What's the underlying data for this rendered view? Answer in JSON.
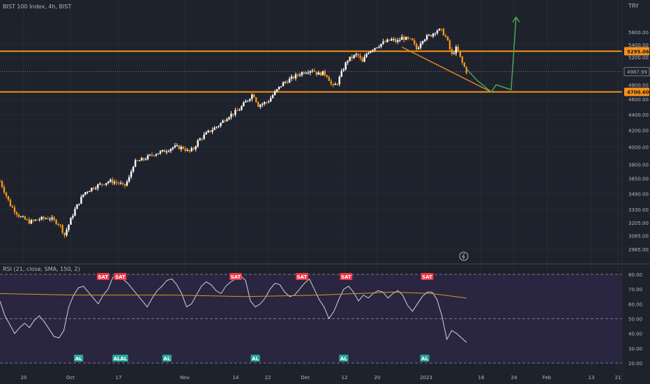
{
  "header": {
    "symbol_title": "BIST 100 Index, 4h, BIST",
    "currency": "TRY"
  },
  "rsi_header": {
    "label": "RSI (21, close, SMA, 150, 2)"
  },
  "colors": {
    "background": "#1e222d",
    "rsi_band": "#2a2540",
    "up": "#ffffff",
    "down": "#f7931a",
    "level": "#f7931a",
    "projection": "#4caf50",
    "rsi_line": "#d1d4dc",
    "rsi_ma": "#c9a227",
    "sat": "#f23645",
    "al": "#26a69a"
  },
  "chart_data": [
    {
      "type": "candlestick",
      "title": "BIST 100 Index, 4h, BIST",
      "x_tick_labels": [
        "20",
        "Oct",
        "17",
        "Nov",
        "14",
        "22",
        "Dec",
        "12",
        "20",
        "2023",
        "16",
        "24",
        "Feb",
        "13",
        "21"
      ],
      "y_tick_labels": [
        "5600.00",
        "5400.00",
        "5200.00",
        "4800.00",
        "4600.00",
        "4400.00",
        "4200.00",
        "4000.00",
        "3800.00",
        "3650.00",
        "3490.00",
        "3330.00",
        "3205.00",
        "3085.00",
        "2965.00"
      ],
      "ylim": [
        2900,
        5800
      ],
      "scale": "log",
      "price_labels": [
        {
          "value": "5295.06",
          "kind": "horizontal level"
        },
        {
          "value": "4987.99",
          "kind": "last price"
        },
        {
          "value": "4700.60",
          "kind": "horizontal level"
        }
      ],
      "horizontal_levels": [
        5295.06,
        4700.6
      ],
      "close_path": [
        [
          0,
          3620
        ],
        [
          2,
          3380
        ],
        [
          4,
          3260
        ],
        [
          6,
          3210
        ],
        [
          8,
          3240
        ],
        [
          10,
          3250
        ],
        [
          12,
          3190
        ],
        [
          13,
          3090
        ],
        [
          15,
          3320
        ],
        [
          17,
          3500
        ],
        [
          19,
          3560
        ],
        [
          21,
          3600
        ],
        [
          22,
          3620
        ],
        [
          24,
          3600
        ],
        [
          25,
          3560
        ],
        [
          26,
          3650
        ],
        [
          27,
          3820
        ],
        [
          29,
          3860
        ],
        [
          31,
          3920
        ],
        [
          33,
          3950
        ],
        [
          35,
          4000
        ],
        [
          37,
          3990
        ],
        [
          38,
          3940
        ],
        [
          39,
          3980
        ],
        [
          40,
          4080
        ],
        [
          42,
          4180
        ],
        [
          44,
          4260
        ],
        [
          46,
          4380
        ],
        [
          48,
          4450
        ],
        [
          50,
          4600
        ],
        [
          51,
          4680
        ],
        [
          52,
          4520
        ],
        [
          54,
          4570
        ],
        [
          55,
          4660
        ],
        [
          57,
          4820
        ],
        [
          59,
          4900
        ],
        [
          61,
          4980
        ],
        [
          63,
          5020
        ],
        [
          64,
          4950
        ],
        [
          65,
          4970
        ],
        [
          66,
          4930
        ],
        [
          67,
          4760
        ],
        [
          68,
          4830
        ],
        [
          69,
          5000
        ],
        [
          70,
          5160
        ],
        [
          72,
          5250
        ],
        [
          73,
          5120
        ],
        [
          74,
          5280
        ],
        [
          75,
          5330
        ],
        [
          77,
          5420
        ],
        [
          79,
          5480
        ],
        [
          80,
          5440
        ],
        [
          81,
          5510
        ],
        [
          83,
          5460
        ],
        [
          84,
          5320
        ],
        [
          85,
          5480
        ],
        [
          87,
          5560
        ],
        [
          88,
          5640
        ],
        [
          89,
          5620
        ],
        [
          90,
          5500
        ],
        [
          91,
          5230
        ],
        [
          92,
          5350
        ],
        [
          93,
          5140
        ],
        [
          94,
          4990
        ]
      ],
      "projection_path": [
        [
          94,
          5030
        ],
        [
          96,
          4870
        ],
        [
          99,
          4700
        ],
        [
          100,
          4800
        ],
        [
          103,
          4730
        ],
        [
          104,
          5850
        ]
      ],
      "trendline": [
        [
          81,
          5360
        ],
        [
          99,
          4700
        ]
      ]
    },
    {
      "type": "line",
      "title": "RSI (21, close, SMA, 150, 2)",
      "y_tick_labels": [
        "80.00",
        "70.00",
        "60.00",
        "50.00",
        "40.00",
        "30.00",
        "20.00"
      ],
      "ylim": [
        18,
        82
      ],
      "bands": [
        80,
        50,
        20
      ],
      "series": [
        {
          "values": [
            [
              0,
              62
            ],
            [
              1,
              52
            ],
            [
              2,
              46
            ],
            [
              3,
              40
            ],
            [
              4,
              44
            ],
            [
              5,
              47
            ],
            [
              6,
              44
            ],
            [
              7,
              49
            ],
            [
              8,
              52
            ],
            [
              9,
              48
            ],
            [
              10,
              43
            ],
            [
              11,
              38
            ],
            [
              12,
              37
            ],
            [
              13,
              42
            ],
            [
              14,
              58
            ],
            [
              15,
              66
            ],
            [
              16,
              71
            ],
            [
              17,
              72
            ],
            [
              18,
              68
            ],
            [
              19,
              64
            ],
            [
              20,
              60
            ],
            [
              21,
              66
            ],
            [
              22,
              70
            ],
            [
              23,
              78
            ],
            [
              24,
              79
            ],
            [
              25,
              77
            ],
            [
              26,
              74
            ],
            [
              27,
              70
            ],
            [
              28,
              66
            ],
            [
              29,
              62
            ],
            [
              30,
              58
            ],
            [
              31,
              64
            ],
            [
              32,
              69
            ],
            [
              33,
              72
            ],
            [
              34,
              76
            ],
            [
              35,
              77
            ],
            [
              36,
              73
            ],
            [
              37,
              67
            ],
            [
              38,
              58
            ],
            [
              39,
              60
            ],
            [
              40,
              66
            ],
            [
              41,
              72
            ],
            [
              42,
              75
            ],
            [
              43,
              73
            ],
            [
              44,
              69
            ],
            [
              45,
              67
            ],
            [
              46,
              72
            ],
            [
              47,
              75
            ],
            [
              48,
              77
            ],
            [
              49,
              79
            ],
            [
              50,
              76
            ],
            [
              51,
              62
            ],
            [
              52,
              58
            ],
            [
              53,
              60
            ],
            [
              54,
              64
            ],
            [
              55,
              70
            ],
            [
              56,
              74
            ],
            [
              57,
              73
            ],
            [
              58,
              68
            ],
            [
              59,
              65
            ],
            [
              60,
              66
            ],
            [
              61,
              70
            ],
            [
              62,
              74
            ],
            [
              63,
              77
            ],
            [
              64,
              70
            ],
            [
              65,
              63
            ],
            [
              66,
              58
            ],
            [
              67,
              50
            ],
            [
              68,
              55
            ],
            [
              69,
              63
            ],
            [
              70,
              70
            ],
            [
              71,
              72
            ],
            [
              72,
              68
            ],
            [
              73,
              62
            ],
            [
              74,
              66
            ],
            [
              75,
              64
            ],
            [
              76,
              67
            ],
            [
              77,
              69
            ],
            [
              78,
              68
            ],
            [
              79,
              64
            ],
            [
              80,
              67
            ],
            [
              81,
              69
            ],
            [
              82,
              66
            ],
            [
              83,
              59
            ],
            [
              84,
              55
            ],
            [
              85,
              60
            ],
            [
              86,
              65
            ],
            [
              87,
              68
            ],
            [
              88,
              68
            ],
            [
              89,
              63
            ],
            [
              90,
              52
            ],
            [
              91,
              36
            ],
            [
              92,
              42
            ],
            [
              93,
              40
            ],
            [
              94,
              37
            ],
            [
              95,
              34
            ]
          ]
        },
        {
          "values": [
            [
              0,
              67
            ],
            [
              15,
              66
            ],
            [
              35,
              66
            ],
            [
              50,
              65
            ],
            [
              65,
              66
            ],
            [
              80,
              68
            ],
            [
              88,
              67
            ],
            [
              95,
              64
            ]
          ]
        }
      ],
      "annotations": [
        {
          "text": "SAT",
          "x": 21,
          "y": 80,
          "side": "top"
        },
        {
          "text": "SAT",
          "x": 24.5,
          "y": 80,
          "side": "top"
        },
        {
          "text": "SAT",
          "x": 48,
          "y": 80,
          "side": "top"
        },
        {
          "text": "SAT",
          "x": 61.5,
          "y": 80,
          "side": "top"
        },
        {
          "text": "SAT",
          "x": 70.5,
          "y": 80,
          "side": "top"
        },
        {
          "text": "SAT",
          "x": 87,
          "y": 80,
          "side": "top"
        },
        {
          "text": "AL",
          "x": 16,
          "y": 20,
          "side": "bottom"
        },
        {
          "text": "ALAL",
          "x": 24.5,
          "y": 20,
          "side": "bottom"
        },
        {
          "text": "AL",
          "x": 34,
          "y": 20,
          "side": "bottom"
        },
        {
          "text": "AL",
          "x": 52,
          "y": 20,
          "side": "bottom"
        },
        {
          "text": "AL",
          "x": 70,
          "y": 20,
          "side": "bottom"
        },
        {
          "text": "AL",
          "x": 86.5,
          "y": 20,
          "side": "bottom"
        }
      ]
    }
  ]
}
